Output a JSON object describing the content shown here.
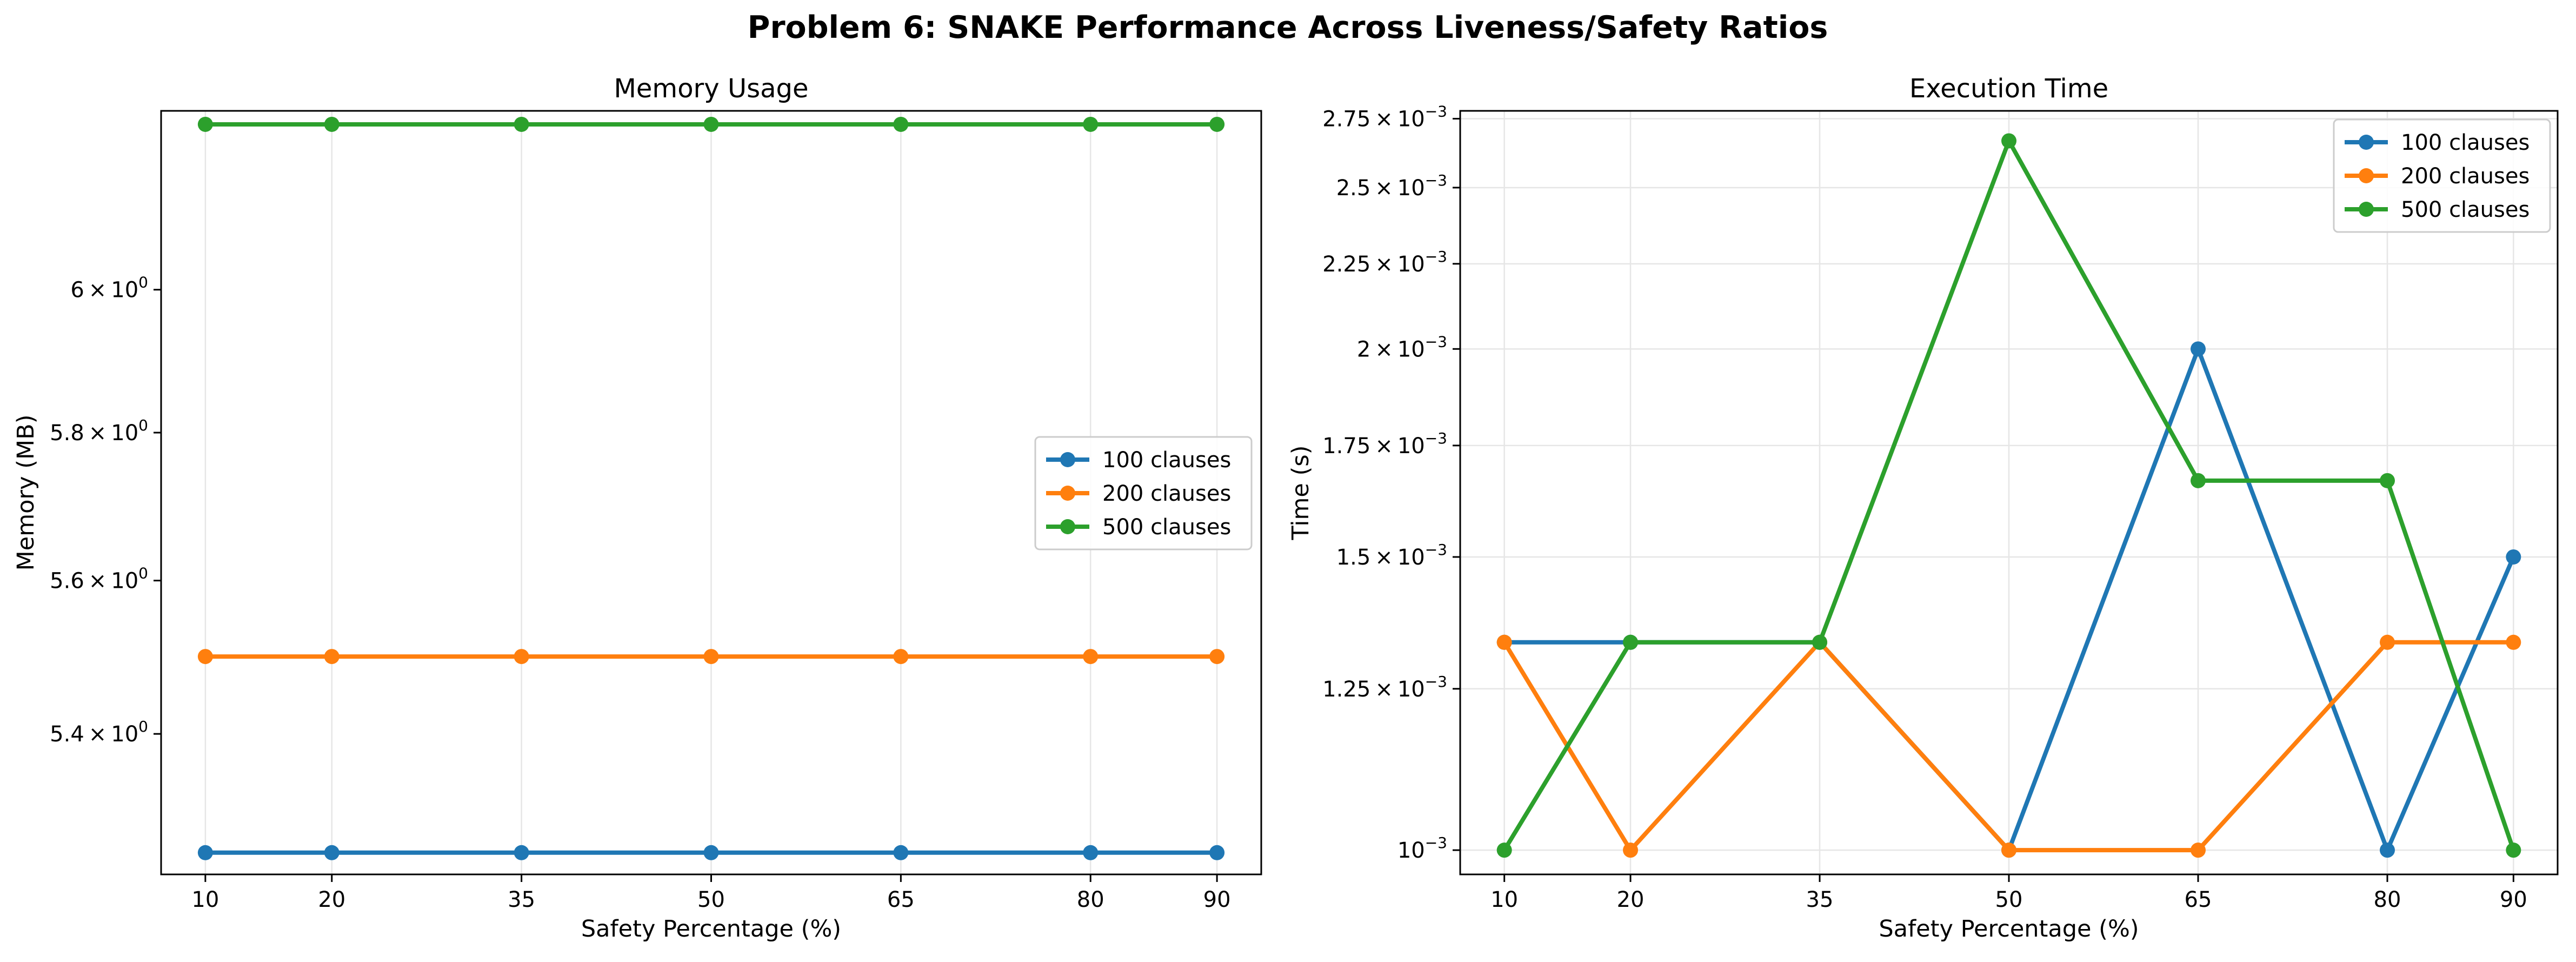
{
  "suptitle": "Problem 6: SNAKE Performance Across Liveness/Safety Ratios",
  "colors": {
    "c100": "#1f77b4",
    "c200": "#ff7f0e",
    "c500": "#2ca02c",
    "grid": "#e6e6e6",
    "text": "#000000"
  },
  "chart_data": [
    {
      "type": "line",
      "title": "Memory Usage",
      "xlabel": "Safety Percentage (%)",
      "ylabel": "Memory (MB)",
      "yscale": "log",
      "ylim": [
        5.223,
        6.26
      ],
      "grid": "x",
      "legend": "center-right",
      "x": [
        10,
        20,
        35,
        50,
        65,
        80,
        90
      ],
      "x_ticks": [
        "10",
        "20",
        "35",
        "50",
        "65",
        "80",
        "90"
      ],
      "y_ticks": [
        {
          "value": 5.4,
          "base": "5.4",
          "exp": "0"
        },
        {
          "value": 5.6,
          "base": "5.6",
          "exp": "0"
        },
        {
          "value": 5.8,
          "base": "5.8",
          "exp": "0"
        },
        {
          "value": 6.0,
          "base": "6",
          "exp": "0"
        }
      ],
      "series": [
        {
          "name": "100 clauses",
          "values": [
            5.25,
            5.25,
            5.25,
            5.25,
            5.25,
            5.25,
            5.25
          ]
        },
        {
          "name": "200 clauses",
          "values": [
            5.5,
            5.5,
            5.5,
            5.5,
            5.5,
            5.5,
            5.5
          ]
        },
        {
          "name": "500 clauses",
          "values": [
            6.24,
            6.24,
            6.24,
            6.24,
            6.24,
            6.24,
            6.24
          ]
        }
      ]
    },
    {
      "type": "line",
      "title": "Execution Time",
      "xlabel": "Safety Percentage (%)",
      "ylabel": "Time (s)",
      "yscale": "log",
      "ylim": [
        0.000967,
        0.00278
      ],
      "grid": "both",
      "legend": "upper-right",
      "x": [
        10,
        20,
        35,
        50,
        65,
        80,
        90
      ],
      "x_ticks": [
        "10",
        "20",
        "35",
        "50",
        "65",
        "80",
        "90"
      ],
      "y_ticks": [
        {
          "value": 0.001,
          "base": "10",
          "exp": "−3",
          "mult": false
        },
        {
          "value": 0.00125,
          "base": "1.25",
          "exp": "−3",
          "mult": true
        },
        {
          "value": 0.0015,
          "base": "1.5",
          "exp": "−3",
          "mult": true
        },
        {
          "value": 0.00175,
          "base": "1.75",
          "exp": "−3",
          "mult": true
        },
        {
          "value": 0.002,
          "base": "2",
          "exp": "−3",
          "mult": true
        },
        {
          "value": 0.00225,
          "base": "2.25",
          "exp": "−3",
          "mult": true
        },
        {
          "value": 0.0025,
          "base": "2.5",
          "exp": "−3",
          "mult": true
        },
        {
          "value": 0.00275,
          "base": "2.75",
          "exp": "−3",
          "mult": true
        }
      ],
      "series": [
        {
          "name": "100 clauses",
          "values": [
            0.001333,
            0.001333,
            0.001333,
            0.001,
            0.002,
            0.001,
            0.0015
          ]
        },
        {
          "name": "200 clauses",
          "values": [
            0.001333,
            0.001,
            0.001333,
            0.001,
            0.001,
            0.001333,
            0.001333
          ]
        },
        {
          "name": "500 clauses",
          "values": [
            0.001,
            0.001333,
            0.001333,
            0.002667,
            0.001667,
            0.001667,
            0.001
          ]
        }
      ]
    }
  ]
}
